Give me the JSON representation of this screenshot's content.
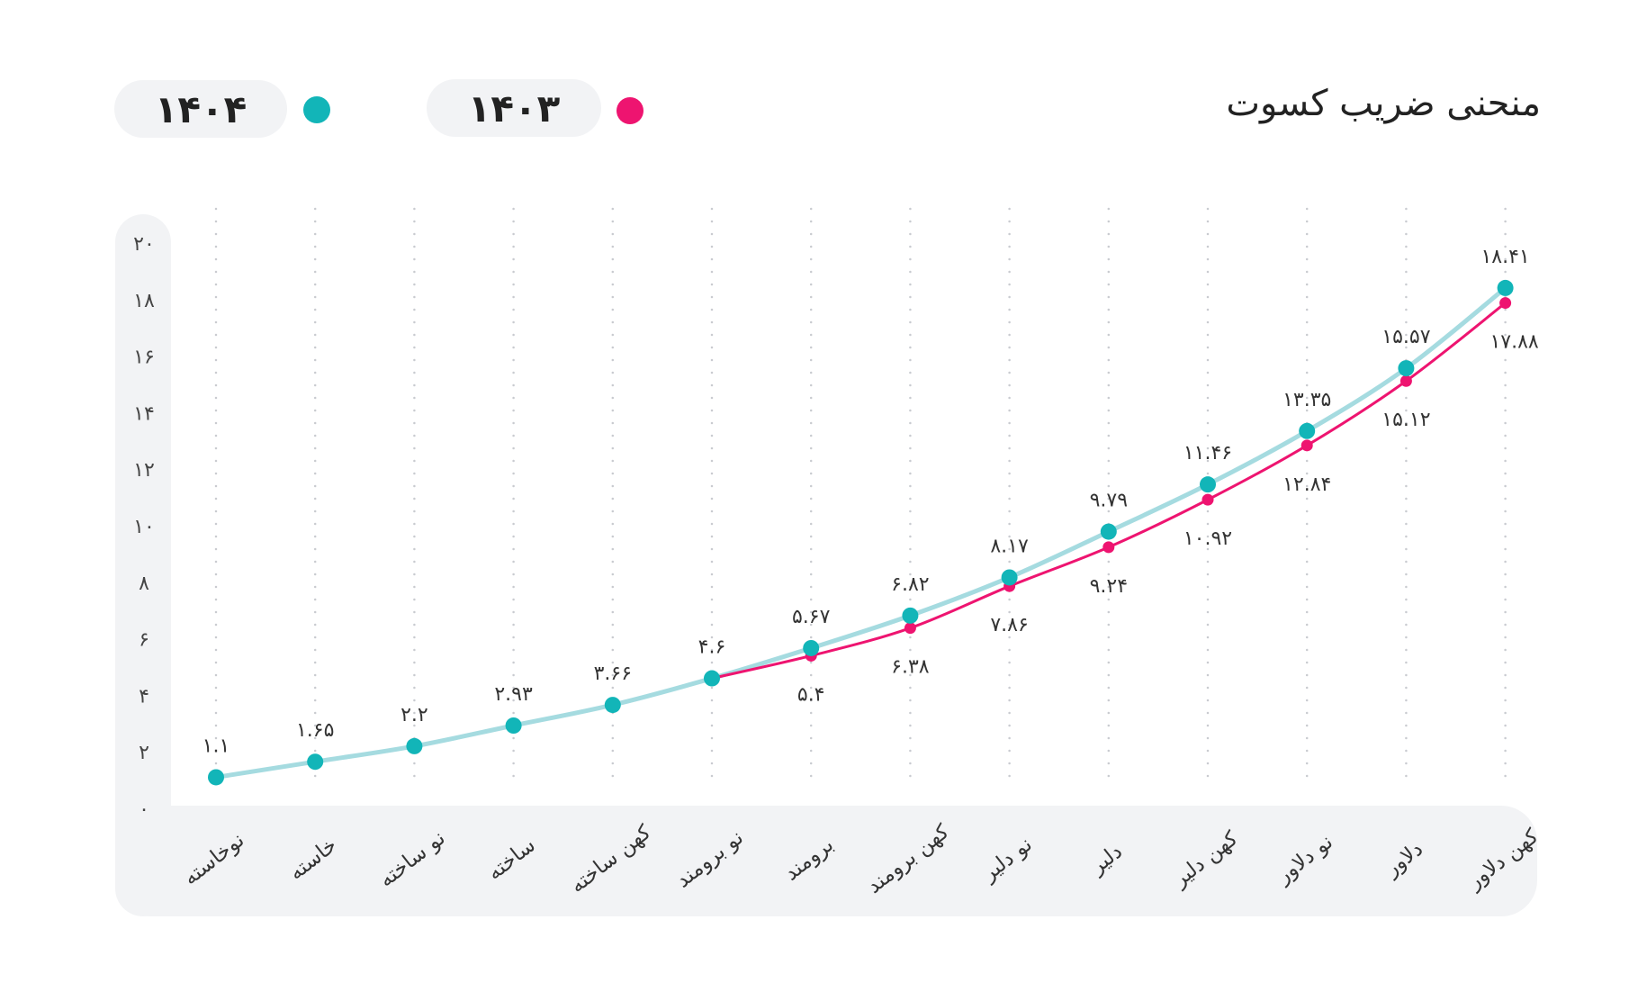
{
  "chart_data": {
    "type": "line",
    "title": "منحنی ضریب کسوت",
    "categories": [
      "نوخاسته",
      "خاسته",
      "نو ساخته",
      "ساخته",
      "کهن ساخته",
      "نو برومند",
      "برومند",
      "کهن برومند",
      "نو دلیر",
      "دلیر",
      "کهن دلیر",
      "نو دلاور",
      "دلاور",
      "کهن دلاور"
    ],
    "series": [
      {
        "name": "۱۴۰۳",
        "color": "#ee1470",
        "values": [
          null,
          null,
          null,
          null,
          null,
          4.6,
          5.4,
          6.38,
          7.86,
          9.24,
          10.92,
          12.84,
          15.12,
          17.88
        ],
        "value_labels": [
          "",
          "",
          "",
          "",
          "",
          "",
          "۵.۴",
          "۶.۳۸",
          "۷.۸۶",
          "۹.۲۴",
          "۱۰.۹۲",
          "۱۲.۸۴",
          "۱۵.۱۲",
          "۱۷.۸۸"
        ]
      },
      {
        "name": "۱۴۰۴",
        "color": "#12b5b8",
        "line_color": "#a5dbe0",
        "values": [
          1.1,
          1.65,
          2.2,
          2.93,
          3.66,
          4.6,
          5.67,
          6.82,
          8.17,
          9.79,
          11.46,
          13.35,
          15.57,
          18.41
        ],
        "value_labels": [
          "۱.۱",
          "۱.۶۵",
          "۲.۲",
          "۲.۹۳",
          "۳.۶۶",
          "۴.۶",
          "۵.۶۷",
          "۶.۸۲",
          "۸.۱۷",
          "۹.۷۹",
          "۱۱.۴۶",
          "۱۳.۳۵",
          "۱۵.۵۷",
          "۱۸.۴۱"
        ]
      }
    ],
    "ylim": [
      0,
      20
    ],
    "yticks": [
      0,
      2,
      4,
      6,
      8,
      10,
      12,
      14,
      16,
      18,
      20
    ],
    "ytick_labels": [
      "۰",
      "۲",
      "۴",
      "۶",
      "۸",
      "۱۰",
      "۱۲",
      "۱۴",
      "۱۶",
      "۱۸",
      "۲۰"
    ],
    "grid": "vertical-dotted",
    "legend_position": "top-left"
  }
}
